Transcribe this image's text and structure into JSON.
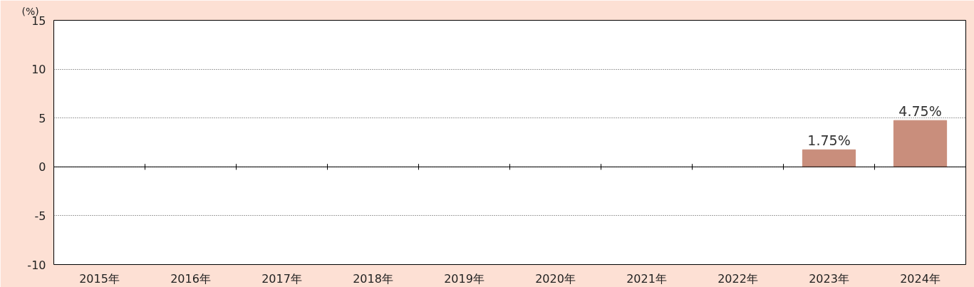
{
  "chart_data": {
    "type": "bar",
    "ylabel": "(%)",
    "categories": [
      "2015年",
      "2016年",
      "2017年",
      "2018年",
      "2019年",
      "2020年",
      "2021年",
      "2022年",
      "2023年",
      "2024年"
    ],
    "values": [
      null,
      null,
      null,
      null,
      null,
      null,
      null,
      null,
      1.75,
      4.75
    ],
    "value_labels": [
      null,
      null,
      null,
      null,
      null,
      null,
      null,
      null,
      "1.75%",
      "4.75%"
    ],
    "color": "#c98e7c",
    "ylim": [
      -10,
      15
    ],
    "yticks": [
      -10,
      -5,
      0,
      5,
      10,
      15
    ],
    "grid": "y"
  }
}
